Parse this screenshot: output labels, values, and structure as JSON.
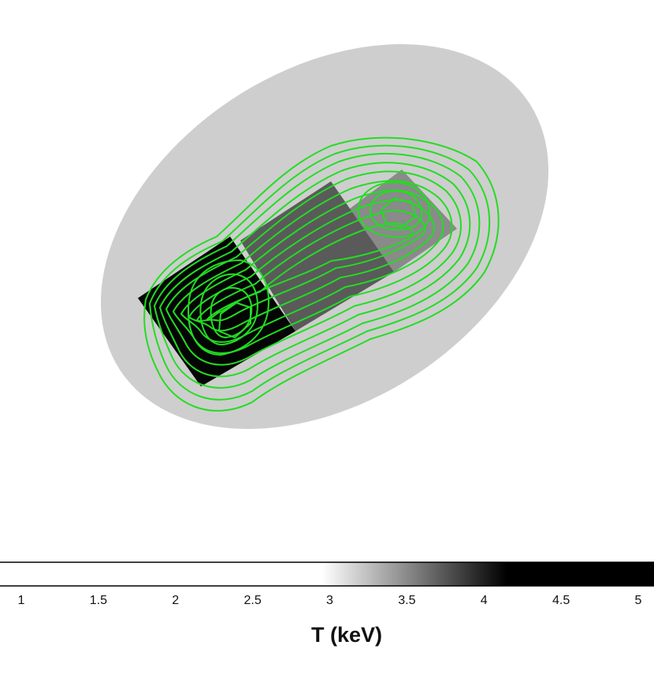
{
  "colorbar": {
    "title": "T (keV)",
    "ticks": [
      "1",
      "1.5",
      "2",
      "2.5",
      "3",
      "3.5",
      "4",
      "4.5",
      "5"
    ],
    "range": [
      1,
      5
    ],
    "gradient_start": 2.95,
    "gradient_end": 4.15
  },
  "colors": {
    "background": "#ffffff",
    "ellipse": "#cecece",
    "contours": "#22dd22",
    "hot_region": "#050505",
    "mid_region": "#5a5a5a",
    "cool_region": "#888888"
  }
}
